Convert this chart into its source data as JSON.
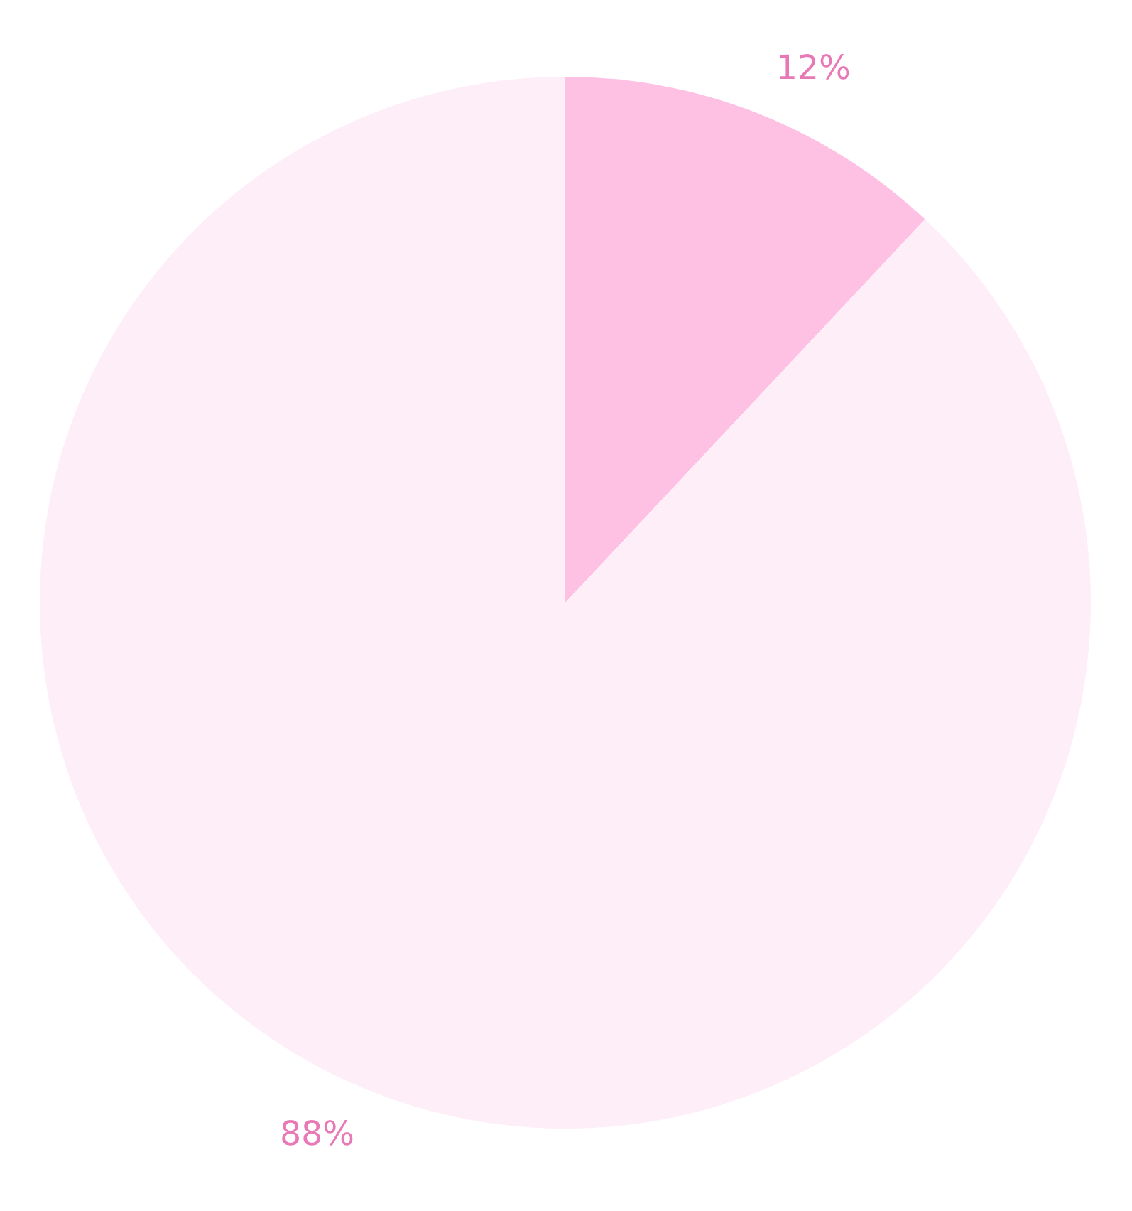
{
  "chart_data": {
    "type": "pie",
    "categories": [
      null,
      null
    ],
    "values": [
      12,
      88
    ],
    "colors": [
      "#fec0e3",
      "#feeef8"
    ],
    "value_labels": [
      "12%",
      "88%"
    ]
  }
}
